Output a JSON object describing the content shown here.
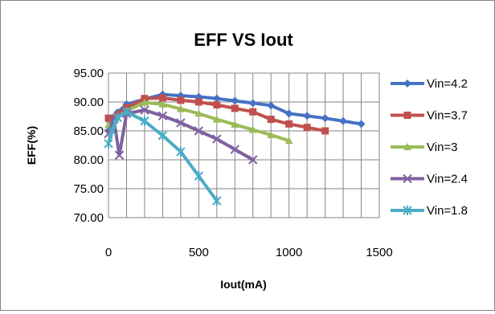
{
  "chart_data": {
    "type": "line",
    "title": "EFF VS Iout",
    "xlabel": "Iout(mA)",
    "ylabel": "EFF(%)",
    "xlim": [
      0,
      1500
    ],
    "ylim": [
      70,
      95
    ],
    "xticks": [
      "0",
      "500",
      "1000",
      "1500"
    ],
    "yticks": [
      "95.00",
      "90.00",
      "85.00",
      "80.00",
      "75.00",
      "70.00"
    ],
    "grid": true,
    "legend_position": "right",
    "series": [
      {
        "name": "Vin=4.2",
        "color": "#4572C4",
        "marker": "diamond",
        "x": [
          0,
          10,
          50,
          100,
          200,
          300,
          400,
          500,
          600,
          700,
          800,
          900,
          1000,
          1100,
          1200,
          1300,
          1400
        ],
        "y": [
          85.0,
          86.5,
          88.2,
          89.6,
          90.5,
          91.3,
          91.1,
          90.9,
          90.6,
          90.2,
          89.8,
          89.4,
          88.0,
          87.6,
          87.2,
          86.7,
          86.2
        ]
      },
      {
        "name": "Vin=3.7",
        "color": "#C0504D",
        "marker": "square",
        "x": [
          0,
          100,
          200,
          300,
          400,
          500,
          600,
          700,
          800,
          900,
          1000,
          1100,
          1200
        ],
        "y": [
          87.2,
          89.0,
          90.6,
          90.7,
          90.3,
          90.0,
          89.5,
          88.9,
          88.3,
          87.0,
          86.2,
          85.6,
          85.0
        ]
      },
      {
        "name": "Vin=3",
        "color": "#9BBB59",
        "marker": "triangle",
        "x": [
          0,
          50,
          100,
          200,
          300,
          400,
          500,
          600,
          700,
          800,
          900,
          1000
        ],
        "y": [
          86.0,
          87.3,
          88.5,
          89.9,
          89.6,
          88.8,
          88.0,
          87.0,
          86.1,
          85.2,
          84.3,
          83.3
        ]
      },
      {
        "name": "Vin=2.4",
        "color": "#7F60A0",
        "marker": "x",
        "x": [
          0,
          30,
          60,
          100,
          200,
          300,
          400,
          500,
          600,
          700,
          800
        ],
        "y": [
          84.5,
          87.0,
          80.8,
          88.0,
          88.6,
          87.6,
          86.4,
          85.0,
          83.6,
          81.8,
          80.0
        ]
      },
      {
        "name": "Vin=1.8",
        "color": "#4BACC6",
        "marker": "star",
        "x": [
          0,
          20,
          50,
          100,
          200,
          300,
          400,
          500,
          600
        ],
        "y": [
          82.8,
          85.0,
          87.3,
          88.3,
          86.7,
          84.2,
          81.4,
          77.2,
          72.9
        ]
      }
    ]
  }
}
